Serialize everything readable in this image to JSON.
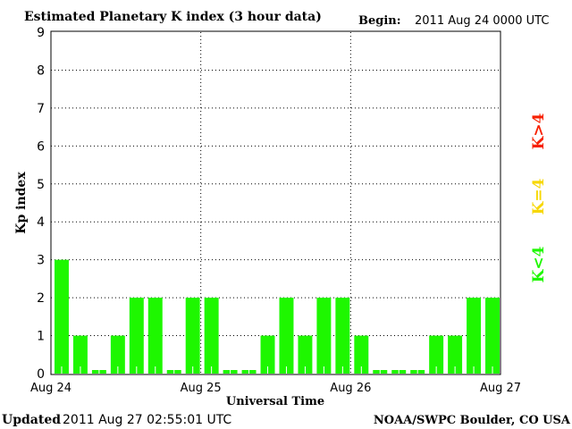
{
  "chart_data": {
    "type": "bar",
    "title": "Estimated Planetary K index (3 hour data)",
    "begin_label": "Begin:",
    "begin_value": "2011 Aug 24 0000 UTC",
    "xlabel": "Universal Time",
    "ylabel": "Kp index",
    "ylim": [
      0,
      9
    ],
    "yticks": [
      "0",
      "1",
      "2",
      "3",
      "4",
      "5",
      "6",
      "7",
      "8",
      "9"
    ],
    "xticks": [
      "Aug 24",
      "Aug 25",
      "Aug 26",
      "Aug 27"
    ],
    "grid": true,
    "values": [
      3,
      1,
      0,
      1,
      2,
      2,
      0,
      2,
      2,
      0,
      0,
      1,
      2,
      1,
      2,
      2,
      1,
      0,
      0,
      0,
      1,
      1,
      2,
      2
    ],
    "bar_color": "#1ef700",
    "legend": [
      {
        "label": "K<4",
        "color": "#1ef700"
      },
      {
        "label": "K=4",
        "color": "#f7d700"
      },
      {
        "label": "K>4",
        "color": "#f72000"
      }
    ],
    "legend_placement": "right"
  },
  "footer": {
    "updated_label": "Updated",
    "updated_value": "2011 Aug 27 02:55:01 UTC",
    "source": "NOAA/SWPC Boulder, CO USA"
  }
}
